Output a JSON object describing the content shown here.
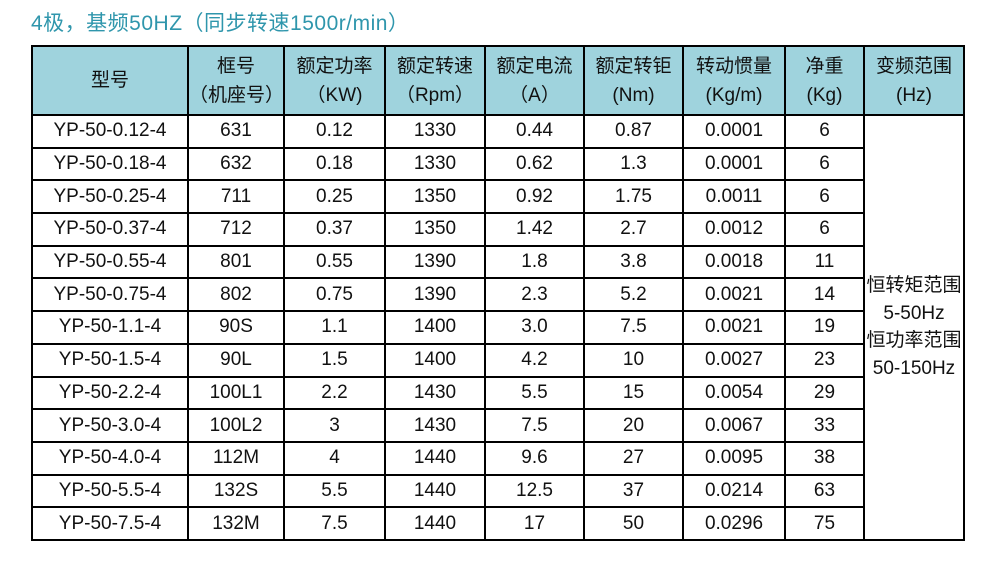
{
  "title": "4极，基频50HZ（同步转速1500r/min）",
  "colors": {
    "header_bg": "#9FD3DD",
    "title_text": "#2F96AC",
    "border": "#000000",
    "page_bg": "#FFFFFF"
  },
  "table": {
    "headers": [
      {
        "line1": "型号",
        "line2": ""
      },
      {
        "line1": "框号",
        "line2": "（机座号）"
      },
      {
        "line1": "额定功率",
        "line2": "（KW)"
      },
      {
        "line1": "额定转速",
        "line2": "（Rpm）"
      },
      {
        "line1": "额定电流",
        "line2": "（A）"
      },
      {
        "line1": "额定转钜",
        "line2": "(Nm)"
      },
      {
        "line1": "转动惯量",
        "line2": "(Kg/m)"
      },
      {
        "line1": "净重",
        "line2": "(Kg)"
      },
      {
        "line1": "变频范围",
        "line2": "(Hz)"
      }
    ],
    "rows": [
      [
        "YP-50-0.12-4",
        "631",
        "0.12",
        "1330",
        "0.44",
        "0.87",
        "0.0001",
        "6"
      ],
      [
        "YP-50-0.18-4",
        "632",
        "0.18",
        "1330",
        "0.62",
        "1.3",
        "0.0001",
        "6"
      ],
      [
        "YP-50-0.25-4",
        "711",
        "0.25",
        "1350",
        "0.92",
        "1.75",
        "0.0011",
        "6"
      ],
      [
        "YP-50-0.37-4",
        "712",
        "0.37",
        "1350",
        "1.42",
        "2.7",
        "0.0012",
        "6"
      ],
      [
        "YP-50-0.55-4",
        "801",
        "0.55",
        "1390",
        "1.8",
        "3.8",
        "0.0018",
        "11"
      ],
      [
        "YP-50-0.75-4",
        "802",
        "0.75",
        "1390",
        "2.3",
        "5.2",
        "0.0021",
        "14"
      ],
      [
        "YP-50-1.1-4",
        "90S",
        "1.1",
        "1400",
        "3.0",
        "7.5",
        "0.0021",
        "19"
      ],
      [
        "YP-50-1.5-4",
        "90L",
        "1.5",
        "1400",
        "4.2",
        "10",
        "0.0027",
        "23"
      ],
      [
        "YP-50-2.2-4",
        "100L1",
        "2.2",
        "1430",
        "5.5",
        "15",
        "0.0054",
        "29"
      ],
      [
        "YP-50-3.0-4",
        "100L2",
        "3",
        "1430",
        "7.5",
        "20",
        "0.0067",
        "33"
      ],
      [
        "YP-50-4.0-4",
        "112M",
        "4",
        "1440",
        "9.6",
        "27",
        "0.0095",
        "38"
      ],
      [
        "YP-50-5.5-4",
        "132S",
        "5.5",
        "1440",
        "12.5",
        "37",
        "0.0214",
        "63"
      ],
      [
        "YP-50-7.5-4",
        "132M",
        "7.5",
        "1440",
        "17",
        "50",
        "0.0296",
        "75"
      ]
    ],
    "frequency_range_cell": [
      "恒转矩范围",
      "5-50Hz",
      "恒功率范围",
      "50-150Hz"
    ]
  }
}
